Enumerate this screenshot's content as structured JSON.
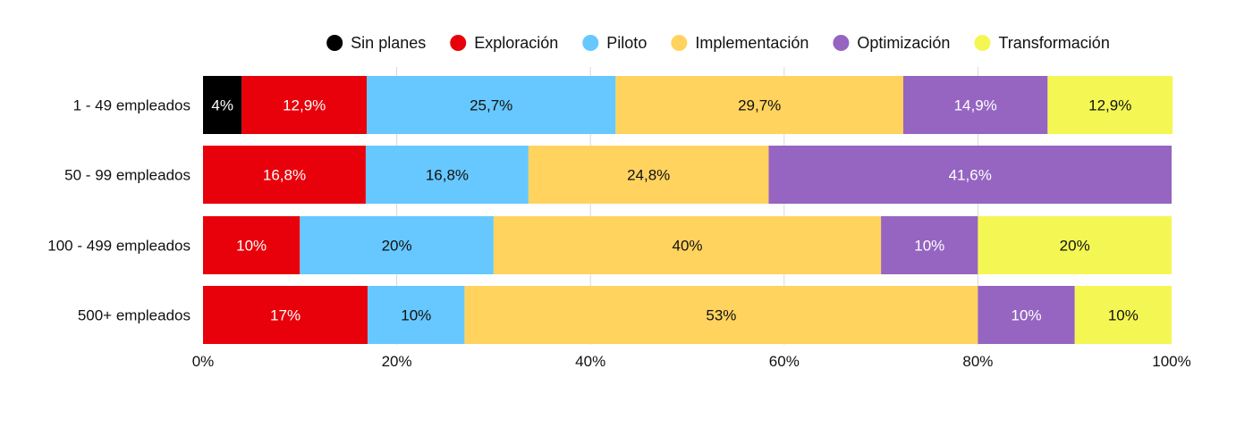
{
  "chart_data": {
    "type": "bar",
    "orientation": "horizontal",
    "stacked": true,
    "title": "",
    "xlabel": "",
    "ylabel": "",
    "xlim": [
      0,
      100
    ],
    "x_ticks": [
      "0%",
      "20%",
      "40%",
      "60%",
      "80%",
      "100%"
    ],
    "x_tick_values": [
      0,
      20,
      40,
      60,
      80,
      100
    ],
    "grid": true,
    "legend_position": "top",
    "categories": [
      "1 - 49 empleados",
      "50 - 99 empleados",
      "100 - 499 empleados",
      "500+ empleados"
    ],
    "series": [
      {
        "name": "Sin planes",
        "color": "#000000",
        "text_color": "#ffffff",
        "values": [
          4,
          0,
          0,
          0
        ],
        "labels": [
          "4%",
          "",
          "",
          ""
        ]
      },
      {
        "name": "Exploración",
        "color": "#e8000b",
        "text_color": "#ffffff",
        "values": [
          12.9,
          16.8,
          10,
          17
        ],
        "labels": [
          "12,9%",
          "16,8%",
          "10%",
          "17%"
        ]
      },
      {
        "name": "Piloto",
        "color": "#66c8ff",
        "text_color": "#111111",
        "values": [
          25.7,
          16.8,
          20,
          10
        ],
        "labels": [
          "25,7%",
          "16,8%",
          "20%",
          "10%"
        ]
      },
      {
        "name": "Implementación",
        "color": "#ffd35e",
        "text_color": "#111111",
        "values": [
          29.7,
          24.8,
          40,
          53
        ],
        "labels": [
          "29,7%",
          "24,8%",
          "40%",
          "53%"
        ]
      },
      {
        "name": "Optimización",
        "color": "#9565c1",
        "text_color": "#ffffff",
        "values": [
          14.9,
          41.6,
          10,
          10
        ],
        "labels": [
          "14,9%",
          "41,6%",
          "10%",
          "10%"
        ]
      },
      {
        "name": "Transformación",
        "color": "#f4f753",
        "text_color": "#111111",
        "values": [
          12.9,
          0,
          20,
          10
        ],
        "labels": [
          "12,9%",
          "",
          "20%",
          "10%"
        ]
      }
    ]
  }
}
